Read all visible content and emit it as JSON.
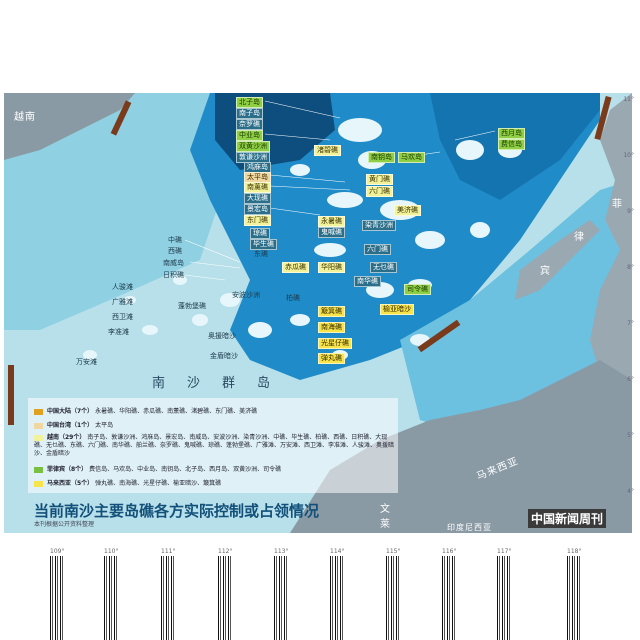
{
  "map": {
    "title": "当前南沙主要岛礁各方实际控制或占领情况",
    "subtitle": "本刊根据公开资料整理",
    "brand": "中国新闻周刊",
    "region_label": "南沙群岛",
    "countries": {
      "vietnam": "越南",
      "philippines": [
        "菲",
        "律",
        "宾"
      ],
      "malaysia": "马来西亚",
      "brunei": "文莱",
      "indonesia": "印度尼西亚"
    },
    "latitudes": [
      "11°",
      "10°",
      "9°",
      "8°",
      "7°",
      "6°",
      "5°",
      "4°"
    ],
    "longitudes": [
      "109°",
      "110°",
      "111°",
      "112°",
      "113°",
      "114°",
      "115°",
      "116°",
      "117°",
      "118°"
    ],
    "colors": {
      "deep_sea": "#0e4e7e",
      "mid_sea": "#1f8cc9",
      "shelf_sea": "#6cc0e0",
      "shallow_sea": "#b8e0ea",
      "land": "#8a9aa5",
      "china": "#f2f29a",
      "taiwan": "#f0d7a0",
      "vietnam": "#2a6e8a",
      "philippines": "#8fcf45",
      "malaysia": "#f7e34a"
    }
  },
  "legend": [
    {
      "name": "中国大陆（7个）",
      "items": "永暑礁、华阳礁、赤瓜礁、南薰礁、渚碧礁、东门礁、美济礁",
      "color": "#e0a020"
    },
    {
      "name": "中国台湾（1个）",
      "items": "太平岛",
      "color": "#f0d7a0"
    },
    {
      "name": "越南（29个）",
      "items": "南子岛、敦谦沙洲、鸿庥岛、景宏岛、南威岛、安波沙洲、染青沙洲、中礁、毕生礁、柏礁、西礁、日积礁、大现礁、无乜礁、东礁、六门礁、南华礁、舶兰礁、奈罗礁、鬼喊礁、琼礁、蓬勃堡礁、广雅滩、万安滩、西卫滩、李准滩、人骏滩、奥援暗沙、金盾暗沙",
      "color": "#f2f29a"
    },
    {
      "name": "菲律宾（8个）",
      "items": "费信岛、马欢岛、中业岛、南钥岛、北子岛、西月岛、双黄沙洲、司令礁",
      "color": "#7ac040"
    },
    {
      "name": "马来西亚（5个）",
      "items": "弹丸礁、南海礁、光星仔礁、榆亚暗沙、簸箕礁",
      "color": "#f7e34a"
    }
  ],
  "features": {
    "beizi": "北子岛",
    "nanzi": "南子岛",
    "naluo": "奈罗礁",
    "zhongye": "中业岛",
    "shuanghuang": "双黄沙洲",
    "dunqian": "敦谦沙洲",
    "zhubi": "渚碧礁",
    "nanyue": "南钥岛",
    "mahuan": "马欢岛",
    "xiyue": "西月岛",
    "feixin": "费信岛",
    "hongxiu": "鸿庥岛",
    "taiping": "太平岛",
    "nanxun": "南薰礁",
    "daxian": "大现礁",
    "jinghong": "景宏岛",
    "dongmen": "东门礁",
    "huangmen": "黄门礁",
    "meiji": "美济礁",
    "yongshu": "永暑礁",
    "ranqing": "染青沙洲",
    "guihan": "鬼喊礁",
    "qiong": "琼礁",
    "liumen": "六门礁",
    "bisheng": "毕生礁",
    "chigua": "赤瓜礁",
    "zhongjiao": "中礁",
    "xijiao": "西礁",
    "nanwei": "南威岛",
    "riji": "日积礁",
    "dongjiao": "东礁",
    "huayang": "华阳礁",
    "wumie": "无乜礁",
    "renjun": "人骏滩",
    "guangya": "广雅滩",
    "xiwei": "西卫滩",
    "lizhun": "李准滩",
    "wanan": "万安滩",
    "pengbo": "蓬勃堡礁",
    "anbo": "安波沙洲",
    "bojiao": "柏礁",
    "nanhua": "南华礁",
    "siling": "司令礁",
    "boji": "簸箕礁",
    "yuya": "榆亚暗沙",
    "nanhai": "南海礁",
    "aoyuan": "奥援暗沙",
    "guangxingzai": "光星仔礁",
    "jindun": "金盾暗沙",
    "danwan": "弹丸礁"
  }
}
